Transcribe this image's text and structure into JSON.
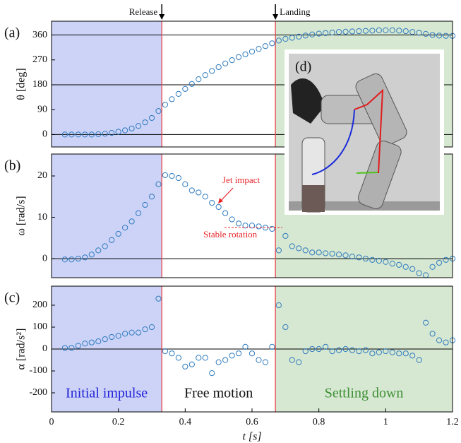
{
  "chart_data": [
    {
      "type": "scatter",
      "label": "(a)",
      "ylabel": "θ [deg]",
      "xlim": [
        0,
        1.2
      ],
      "ylim": [
        -45,
        410
      ],
      "yticks": [
        0,
        90,
        180,
        270,
        360
      ],
      "hlines": [
        0,
        180,
        360
      ],
      "spans": [
        {
          "xlim": [
            0,
            0.33
          ],
          "color": "#ccd3f7"
        },
        {
          "xlim": [
            0.67,
            1.2
          ],
          "color": "#d6e8d2"
        }
      ],
      "vlines": [
        0.33,
        0.67
      ],
      "vline_color": "#e8454a",
      "annotations": [
        "Release",
        "Landing"
      ],
      "x": [
        0.04,
        0.06,
        0.08,
        0.1,
        0.12,
        0.14,
        0.16,
        0.18,
        0.2,
        0.22,
        0.24,
        0.26,
        0.28,
        0.3,
        0.32,
        0.34,
        0.36,
        0.38,
        0.4,
        0.42,
        0.44,
        0.46,
        0.48,
        0.5,
        0.52,
        0.54,
        0.56,
        0.58,
        0.6,
        0.62,
        0.64,
        0.66,
        0.68,
        0.7,
        0.72,
        0.74,
        0.76,
        0.78,
        0.8,
        0.82,
        0.84,
        0.86,
        0.88,
        0.9,
        0.92,
        0.94,
        0.96,
        0.98,
        1.0,
        1.02,
        1.04,
        1.06,
        1.08,
        1.1,
        1.12,
        1.14,
        1.16,
        1.18,
        1.2
      ],
      "series": [
        {
          "color": "#2f7bbf",
          "values": [
            0,
            0,
            0,
            0,
            0,
            1,
            3,
            6,
            10,
            15,
            22,
            31,
            44,
            60,
            85,
            108,
            128,
            147,
            165,
            183,
            200,
            215,
            230,
            244,
            257,
            269,
            280,
            290,
            300,
            310,
            320,
            330,
            340,
            346,
            350,
            354,
            358,
            362,
            365,
            367,
            369,
            371,
            372,
            373,
            374,
            375,
            376,
            377,
            377,
            377,
            376,
            374,
            371,
            368,
            364,
            360,
            358,
            357,
            357
          ]
        }
      ]
    },
    {
      "type": "scatter",
      "label": "(b)",
      "ylabel": "ω [rad/s]",
      "xlim": [
        0,
        1.2
      ],
      "ylim": [
        -4.6,
        25.3
      ],
      "yticks": [
        0,
        10,
        20
      ],
      "hlines": [
        0
      ],
      "spans": [
        {
          "xlim": [
            0,
            0.33
          ],
          "color": "#ccd3f7"
        },
        {
          "xlim": [
            0.67,
            1.2
          ],
          "color": "#d6e8d2"
        }
      ],
      "vlines": [
        0.33,
        0.67
      ],
      "vline_color": "#e8454a",
      "annotations": [
        "Jet impact",
        "Stable rotation"
      ],
      "annotation_color": "#e8262a",
      "x": [
        0.04,
        0.06,
        0.08,
        0.1,
        0.12,
        0.14,
        0.16,
        0.18,
        0.2,
        0.22,
        0.24,
        0.26,
        0.28,
        0.3,
        0.32,
        0.34,
        0.36,
        0.38,
        0.4,
        0.42,
        0.44,
        0.46,
        0.48,
        0.5,
        0.52,
        0.54,
        0.56,
        0.58,
        0.6,
        0.62,
        0.64,
        0.66,
        0.68,
        0.7,
        0.72,
        0.74,
        0.76,
        0.78,
        0.8,
        0.82,
        0.84,
        0.86,
        0.88,
        0.9,
        0.92,
        0.94,
        0.96,
        0.98,
        1.0,
        1.02,
        1.04,
        1.06,
        1.08,
        1.1,
        1.12,
        1.14,
        1.16,
        1.18,
        1.2
      ],
      "series": [
        {
          "color": "#2f7bbf",
          "values": [
            -0.2,
            -0.2,
            0,
            0.3,
            1,
            2,
            3,
            4.5,
            6,
            7.5,
            9,
            11,
            13,
            15,
            18,
            20.2,
            20,
            19.5,
            18,
            16.5,
            16,
            15,
            13.5,
            12.5,
            11,
            9.5,
            8.5,
            8,
            8,
            7.8,
            7.5,
            7.2,
            2,
            5.5,
            3,
            2.5,
            2,
            1.5,
            1.5,
            1.3,
            1.2,
            1,
            0.8,
            0.5,
            0.3,
            0,
            -0.3,
            -0.5,
            -0.8,
            -1.2,
            -1.5,
            -2,
            -2.5,
            -3.5,
            -4,
            -2,
            -1,
            -0.3,
            0
          ]
        }
      ]
    },
    {
      "type": "scatter",
      "label": "(c)",
      "ylabel": "α [rad/s²]",
      "xlabel": "t [s]",
      "xlim": [
        0,
        1.2
      ],
      "xticks": [
        0,
        0.2,
        0.4,
        0.6,
        0.8,
        1,
        1.2
      ],
      "ylim": [
        -287,
        287
      ],
      "yticks": [
        -200,
        -100,
        0,
        100,
        200
      ],
      "hlines": [
        0
      ],
      "spans": [
        {
          "xlim": [
            0,
            0.33
          ],
          "color": "#ccd3f7"
        },
        {
          "xlim": [
            0.67,
            1.2
          ],
          "color": "#d6e8d2"
        }
      ],
      "vlines": [
        0.33,
        0.67
      ],
      "vline_color": "#e8454a",
      "region_labels": [
        {
          "text": "Initial impulse",
          "color": "#2323d8"
        },
        {
          "text": "Free motion",
          "color": "#111111"
        },
        {
          "text": "Settling down",
          "color": "#3f8f35"
        }
      ],
      "x": [
        0.04,
        0.06,
        0.08,
        0.1,
        0.12,
        0.14,
        0.16,
        0.18,
        0.2,
        0.22,
        0.24,
        0.26,
        0.28,
        0.3,
        0.32,
        0.34,
        0.36,
        0.38,
        0.4,
        0.42,
        0.44,
        0.46,
        0.48,
        0.5,
        0.52,
        0.54,
        0.56,
        0.58,
        0.6,
        0.62,
        0.64,
        0.66,
        0.68,
        0.7,
        0.72,
        0.74,
        0.76,
        0.78,
        0.8,
        0.82,
        0.84,
        0.86,
        0.88,
        0.9,
        0.92,
        0.94,
        0.96,
        0.98,
        1.0,
        1.02,
        1.04,
        1.06,
        1.08,
        1.1,
        1.12,
        1.14,
        1.16,
        1.18,
        1.2
      ],
      "series": [
        {
          "color": "#2f7bbf",
          "values": [
            5,
            5,
            15,
            25,
            30,
            35,
            45,
            55,
            60,
            70,
            75,
            75,
            90,
            100,
            230,
            -10,
            -20,
            -40,
            -80,
            -70,
            -40,
            -40,
            -110,
            -60,
            -50,
            -30,
            -20,
            10,
            -20,
            -50,
            -60,
            10,
            200,
            100,
            -50,
            -60,
            -10,
            0,
            0,
            10,
            -10,
            -5,
            0,
            -5,
            -10,
            -5,
            -20,
            -15,
            -10,
            -15,
            -20,
            -20,
            -30,
            -50,
            120,
            70,
            40,
            30,
            40
          ]
        }
      ]
    }
  ],
  "inset": {
    "label": "(d)"
  }
}
